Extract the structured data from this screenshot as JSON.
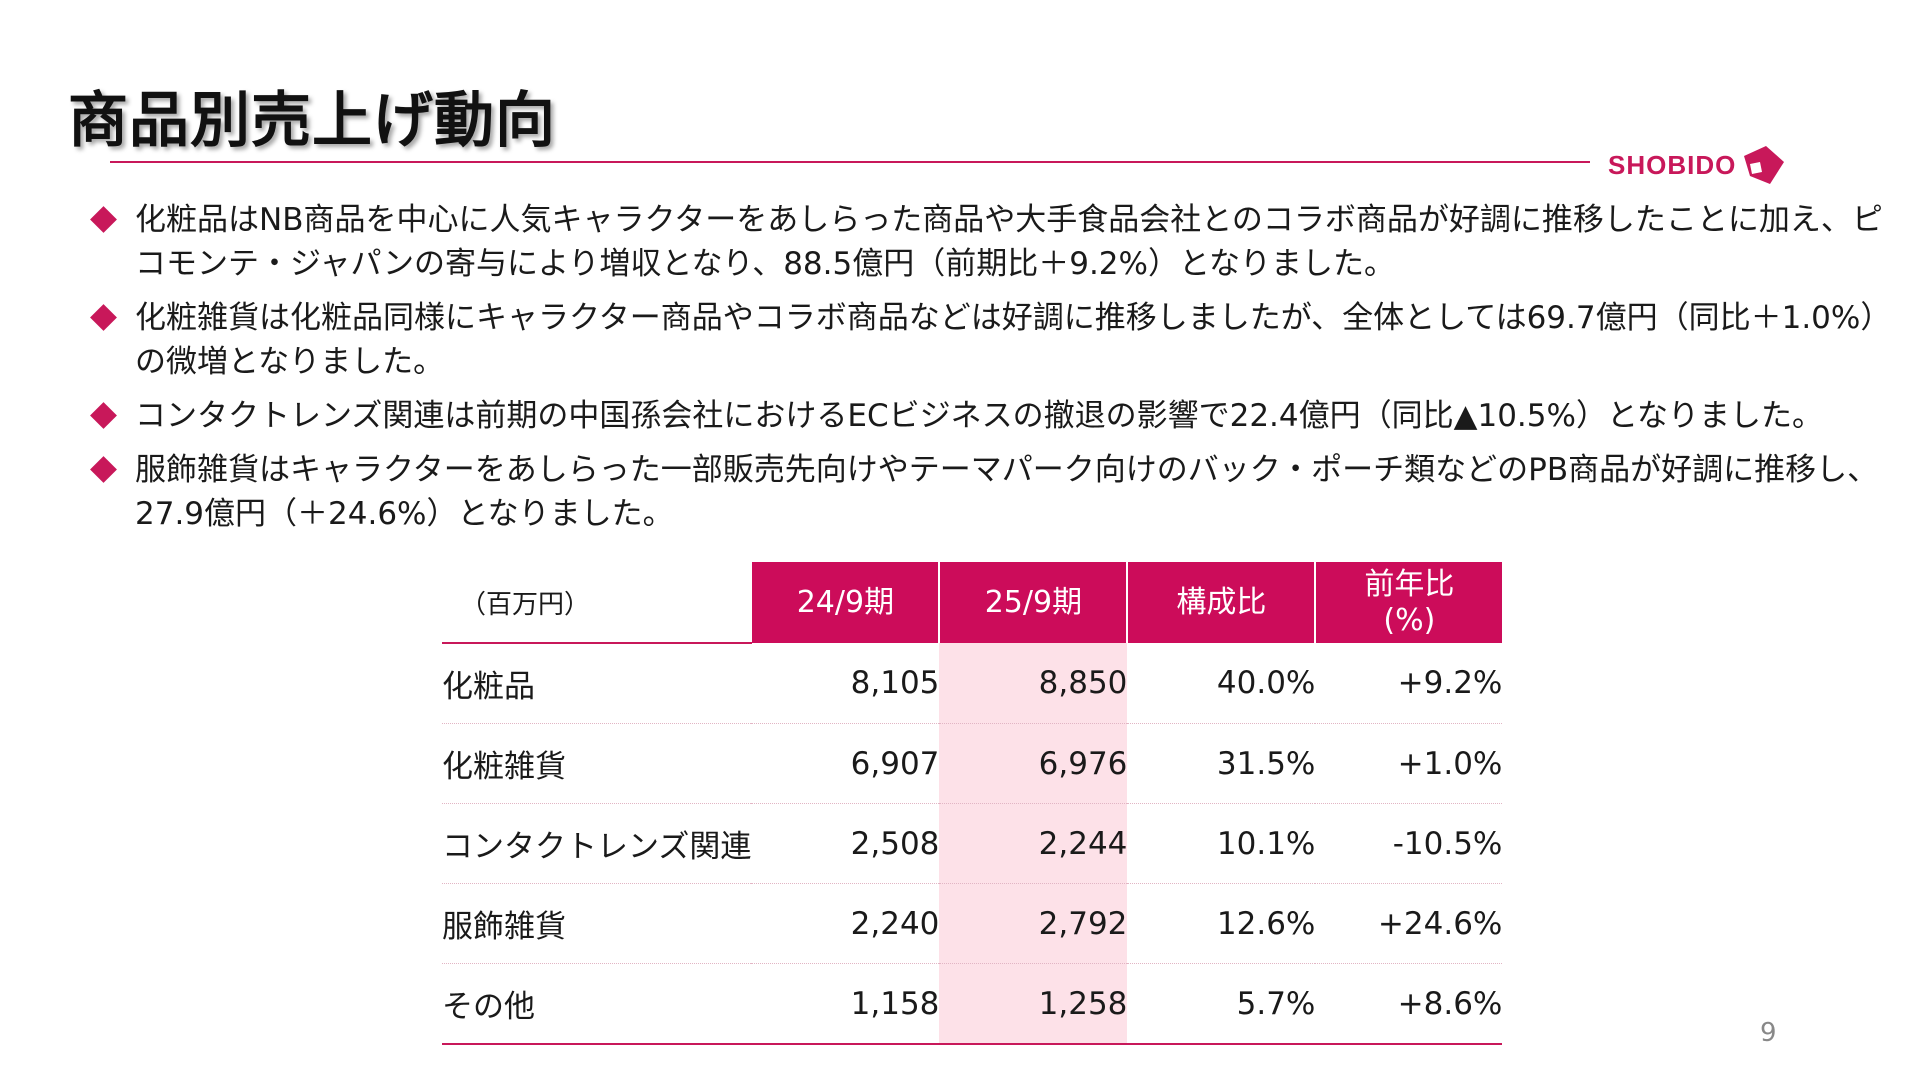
{
  "title": "商品別売上げ動向",
  "logo": {
    "text": "SHOBIDO"
  },
  "colors": {
    "accent": "#c8185a",
    "header_bg": "#cc0c5a",
    "highlight": "#fde1e8"
  },
  "bullets": [
    "化粧品はNB商品を中心に人気キャラクターをあしらった商品や大手食品会社とのコラボ商品が好調に推移したことに加え、ピコモンテ・ジャパンの寄与により増収となり、88.5億円（前期比＋9.2%）となりました。",
    "化粧雑貨は化粧品同様にキャラクター商品やコラボ商品などは好調に推移しましたが、全体としては69.7億円（同比＋1.0%）の微増となりました。",
    "コンタクトレンズ関連は前期の中国孫会社におけるECビジネスの撤退の影響で22.4億円（同比▲10.5%）となりました。",
    "服飾雑貨はキャラクターをあしらった一部販売先向けやテーマパーク向けのバック・ポーチ類などのPB商品が好調に推移し、27.9億円（＋24.6%）となりました。"
  ],
  "table": {
    "unit": "（百万円）",
    "headers": [
      "24/9期",
      "25/9期",
      "構成比",
      "前年比",
      "(%)"
    ],
    "rows": [
      {
        "name": "化粧品",
        "prev": "8,105",
        "curr": "8,850",
        "share": "40.0%",
        "yoy": "+9.2%"
      },
      {
        "name": "化粧雑貨",
        "prev": "6,907",
        "curr": "6,976",
        "share": "31.5%",
        "yoy": "+1.0%"
      },
      {
        "name": "コンタクトレンズ関連",
        "prev": "2,508",
        "curr": "2,244",
        "share": "10.1%",
        "yoy": "-10.5%"
      },
      {
        "name": "服飾雑貨",
        "prev": "2,240",
        "curr": "2,792",
        "share": "12.6%",
        "yoy": "+24.6%"
      },
      {
        "name": "その他",
        "prev": "1,158",
        "curr": "1,258",
        "share": "5.7%",
        "yoy": "+8.6%"
      }
    ]
  },
  "page_number": "9"
}
